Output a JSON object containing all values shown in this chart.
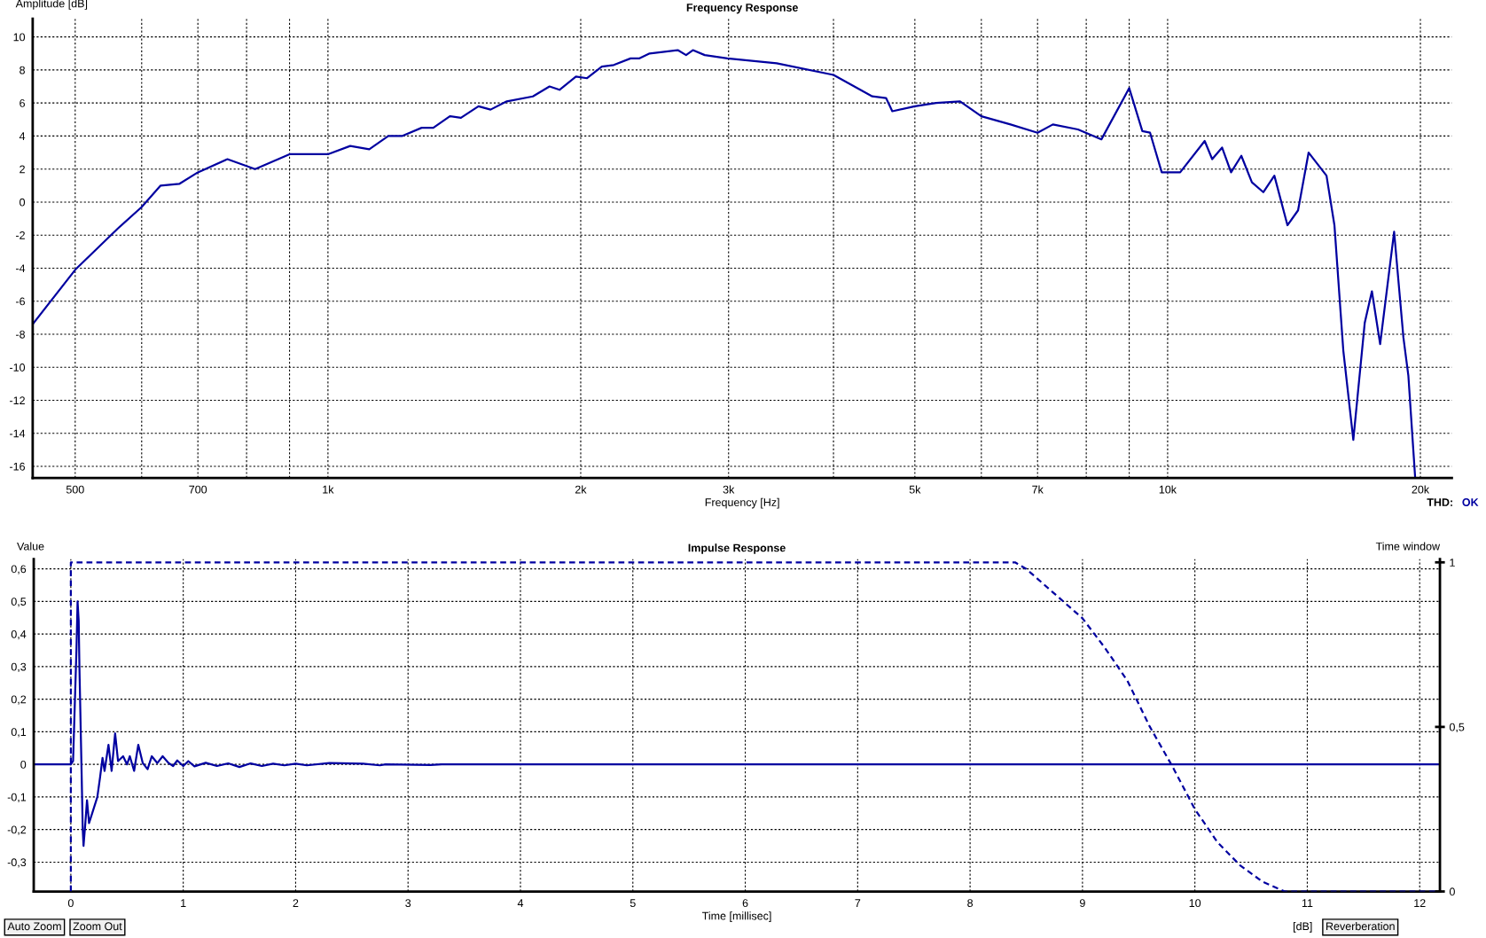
{
  "chart_data": [
    {
      "type": "line",
      "title": "Frequency Response",
      "xlabel": "Frequency [Hz]",
      "ylabel": "Amplitude [dB]",
      "log": "x",
      "grid": true,
      "legend": false,
      "line_style": "solid",
      "marker": "none",
      "xlim": [
        445,
        21800
      ],
      "ylim": [
        -16.7,
        11.1
      ],
      "xticks": [
        500,
        {
          "value": 600,
          "label": null
        },
        700,
        {
          "value": 800,
          "label": null
        },
        {
          "value": 900,
          "label": null
        },
        {
          "value": 1000,
          "label": "1k"
        },
        {
          "value": 2000,
          "label": "2k"
        },
        {
          "value": 3000,
          "label": "3k"
        },
        {
          "value": 4000,
          "label": null
        },
        {
          "value": 5000,
          "label": "5k"
        },
        {
          "value": 6000,
          "label": null
        },
        {
          "value": 7000,
          "label": "7k"
        },
        {
          "value": 8000,
          "label": null
        },
        {
          "value": 9000,
          "label": null
        },
        {
          "value": 10000,
          "label": "10k"
        },
        {
          "value": 20000,
          "label": "20k"
        }
      ],
      "yticks": [
        -16,
        -14,
        -12,
        -10,
        -8,
        -6,
        -4,
        -2,
        0,
        2,
        4,
        6,
        8,
        10
      ],
      "annotations": [
        "THD:",
        "OK"
      ],
      "series": [
        {
          "color": "#0000a0",
          "x": [
            445,
            500,
            562,
            600,
            632,
            665,
            700,
            759,
            819,
            900,
            1000,
            1063,
            1120,
            1180,
            1225,
            1293,
            1335,
            1397,
            1440,
            1511,
            1562,
            1633,
            1754,
            1836,
            1887,
            1974,
            2035,
            2119,
            2190,
            2293,
            2350,
            2416,
            2610,
            2670,
            2720,
            2810,
            2991,
            3423,
            4000,
            4449,
            4620,
            4700,
            5000,
            5300,
            5660,
            6000,
            6500,
            7000,
            7300,
            7820,
            8340,
            9000,
            9330,
            9530,
            9840,
            10350,
            11070,
            11300,
            11610,
            11900,
            12240,
            12600,
            13000,
            13400,
            13890,
            14300,
            14720,
            15460,
            15800,
            16190,
            16640,
            17170,
            17510,
            17910,
            18610,
            19090,
            19350,
            19710
          ],
          "values": [
            -7.4,
            -4.1,
            -1.6,
            -0.3,
            1.0,
            1.1,
            1.8,
            2.6,
            2.0,
            2.9,
            2.9,
            3.4,
            3.2,
            4.0,
            4.0,
            4.5,
            4.5,
            5.2,
            5.1,
            5.8,
            5.6,
            6.1,
            6.4,
            7.0,
            6.8,
            7.6,
            7.5,
            8.2,
            8.3,
            8.7,
            8.7,
            9.0,
            9.2,
            8.9,
            9.2,
            8.9,
            8.7,
            8.4,
            7.7,
            6.4,
            6.3,
            5.5,
            5.8,
            6.0,
            6.1,
            5.2,
            4.7,
            4.2,
            4.7,
            4.4,
            3.8,
            6.9,
            4.3,
            4.2,
            1.8,
            1.8,
            3.7,
            2.6,
            3.3,
            1.8,
            2.8,
            1.2,
            0.6,
            1.6,
            -1.4,
            -0.5,
            3.0,
            1.6,
            -1.4,
            -9.0,
            -14.4,
            -7.3,
            -5.4,
            -8.6,
            -1.8,
            -8.2,
            -10.5,
            -16.6
          ]
        }
      ]
    },
    {
      "type": "line",
      "title": "Impulse Response",
      "xlabel": "Time [millisec]",
      "ylabel": "Value",
      "y2label": "Time window",
      "grid": true,
      "legend": false,
      "marker": "none",
      "xlim": [
        -0.33,
        12.18
      ],
      "ylim": [
        -0.39,
        0.63
      ],
      "y2lim": [
        0,
        1.01
      ],
      "xticks": [
        0,
        1,
        2,
        3,
        4,
        5,
        6,
        7,
        8,
        9,
        10,
        11,
        12
      ],
      "yticks": [
        {
          "value": -0.3,
          "label": "-0,3"
        },
        {
          "value": -0.2,
          "label": "-0,2"
        },
        {
          "value": -0.1,
          "label": "-0,1"
        },
        0,
        {
          "value": 0.1,
          "label": "0,1"
        },
        {
          "value": 0.2,
          "label": "0,2"
        },
        {
          "value": 0.3,
          "label": "0,3"
        },
        {
          "value": 0.4,
          "label": "0,4"
        },
        {
          "value": 0.5,
          "label": "0,5"
        },
        {
          "value": 0.6,
          "label": "0,6"
        }
      ],
      "y2ticks": [
        0,
        {
          "value": 0.5,
          "label": "0,5"
        },
        1
      ],
      "annotations": [
        "Auto Zoom",
        "Zoom Out",
        "[dB]",
        "Reverberation"
      ],
      "series": [
        {
          "color": "#0000a0",
          "line_style": "solid",
          "x": [
            -0.33,
            0,
            0.02,
            0.05,
            0.06,
            0.07,
            0.077,
            0.095,
            0.106,
            0.113,
            0.127,
            0.144,
            0.162,
            0.19,
            0.236,
            0.26,
            0.282,
            0.3,
            0.335,
            0.363,
            0.394,
            0.42,
            0.465,
            0.5,
            0.525,
            0.563,
            0.6,
            0.64,
            0.683,
            0.72,
            0.77,
            0.817,
            0.87,
            0.91,
            0.947,
            1.0,
            1.045,
            1.1,
            1.2,
            1.3,
            1.4,
            1.5,
            1.6,
            1.7,
            1.8,
            1.9,
            2.0,
            2.1,
            2.3,
            2.6,
            2.75,
            2.8,
            3.2,
            3.3,
            12.18
          ],
          "values": [
            0,
            0,
            0.01,
            0.35,
            0.5,
            0.44,
            0.29,
            -0.01,
            -0.2,
            -0.25,
            -0.19,
            -0.11,
            -0.18,
            -0.15,
            -0.1,
            -0.04,
            0.02,
            -0.02,
            0.06,
            -0.02,
            0.095,
            0.01,
            0.025,
            0,
            0.025,
            -0.02,
            0.06,
            0.004,
            -0.015,
            0.025,
            0.004,
            0.025,
            0.004,
            -0.005,
            0.012,
            -0.005,
            0.01,
            -0.006,
            0.005,
            -0.005,
            0.003,
            -0.008,
            0.003,
            -0.005,
            0.002,
            -0.003,
            0.002,
            -0.003,
            0.004,
            0.002,
            -0.003,
            0,
            -0.002,
            0,
            0
          ]
        },
        {
          "color": "#0000a0",
          "line_style": "dashed",
          "axis": "y2",
          "x": [
            0,
            0,
            8.3,
            8.4,
            8.5,
            8.6,
            8.8,
            9.0,
            9.2,
            9.4,
            9.6,
            9.8,
            10.0,
            10.2,
            10.4,
            10.6,
            10.8,
            12.18
          ],
          "values": [
            0,
            1,
            1,
            1,
            0.98,
            0.95,
            0.89,
            0.83,
            0.74,
            0.64,
            0.5,
            0.38,
            0.25,
            0.15,
            0.08,
            0.03,
            0,
            0
          ]
        }
      ]
    }
  ]
}
